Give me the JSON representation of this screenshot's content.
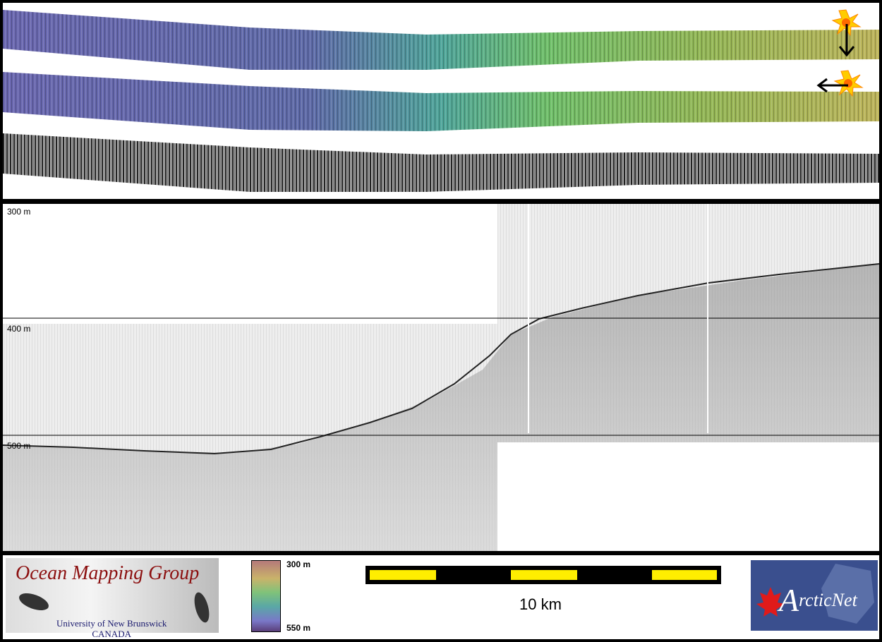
{
  "profile": {
    "depth_labels": [
      "300 m",
      "400 m",
      "500 m"
    ]
  },
  "colorbar": {
    "top_label": "300 m",
    "bottom_label": "550 m"
  },
  "scale_bar": {
    "label": "10 km",
    "colors": {
      "fill": "#ffee00",
      "background": "#000000"
    }
  },
  "logos": {
    "omg_title": "Ocean Mapping Group",
    "omg_line1": "University of New Brunswick",
    "omg_line2": "CANADA",
    "arcticnet_text": "rcticNet",
    "arcticnet_initial": "A"
  },
  "icons": [
    "sun-icon",
    "arrow-down-icon",
    "arrow-left-icon",
    "maple-leaf-icon"
  ],
  "colors": {
    "deep": "#6a67b0",
    "mid": "#4fa59a",
    "shallow": "#b5b35a",
    "omg_red": "#8c1010"
  }
}
